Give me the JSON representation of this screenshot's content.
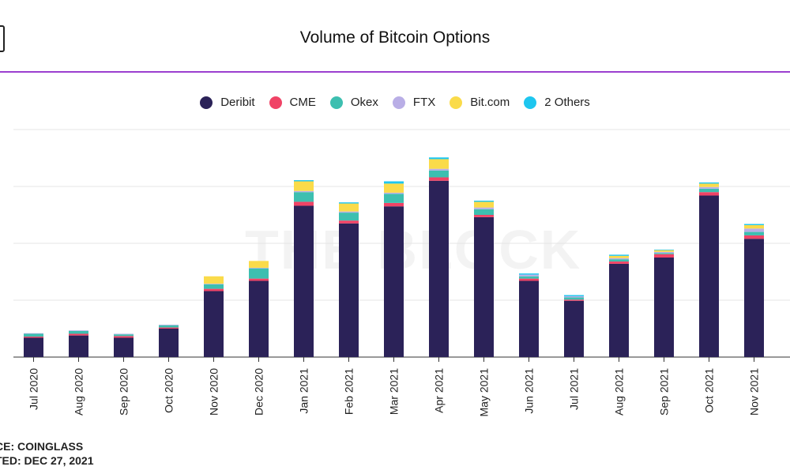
{
  "title": "Volume of Bitcoin Options",
  "watermark": "THE BLOCK",
  "footer": {
    "source": "CE: COINGLASS",
    "updated": "TED: DEC 27, 2021"
  },
  "chart_data": {
    "type": "bar",
    "stacked": true,
    "title": "Volume of Bitcoin Options",
    "xlabel": "",
    "ylabel": "",
    "ylim": [
      0,
      4
    ],
    "grid": true,
    "legend_position": "top-center",
    "categories": [
      "Jul 2020",
      "Aug 2020",
      "Sep 2020",
      "Oct 2020",
      "Nov 2020",
      "Dec 2020",
      "Jan 2021",
      "Feb 2021",
      "Mar 2021",
      "Apr 2021",
      "May 2021",
      "Jun 2021",
      "Jul 2021",
      "Aug 2021",
      "Sep 2021",
      "Oct 2021",
      "Nov 2021"
    ],
    "series": [
      {
        "name": "Deribit",
        "color": "#2b2258",
        "values": [
          0.34,
          0.38,
          0.34,
          0.5,
          1.16,
          1.34,
          2.66,
          2.35,
          2.65,
          3.1,
          2.46,
          1.34,
          0.99,
          1.64,
          1.75,
          2.84,
          2.08
        ]
      },
      {
        "name": "CME",
        "color": "#f04366",
        "values": [
          0.02,
          0.03,
          0.03,
          0.02,
          0.04,
          0.04,
          0.07,
          0.05,
          0.06,
          0.06,
          0.04,
          0.04,
          0.02,
          0.04,
          0.06,
          0.06,
          0.06
        ]
      },
      {
        "name": "Okex",
        "color": "#3dbfb0",
        "values": [
          0.05,
          0.05,
          0.03,
          0.04,
          0.08,
          0.18,
          0.17,
          0.14,
          0.16,
          0.12,
          0.1,
          0.04,
          0.04,
          0.04,
          0.02,
          0.06,
          0.06
        ]
      },
      {
        "name": "FTX",
        "color": "#b9aee6",
        "values": [
          0.01,
          0.01,
          0.01,
          0.01,
          0.01,
          0.01,
          0.02,
          0.02,
          0.02,
          0.03,
          0.03,
          0.03,
          0.02,
          0.02,
          0.02,
          0.03,
          0.06
        ]
      },
      {
        "name": "Bit.com",
        "color": "#fadb4a",
        "values": [
          0.0,
          0.0,
          0.0,
          0.0,
          0.13,
          0.12,
          0.17,
          0.14,
          0.16,
          0.17,
          0.1,
          0.0,
          0.0,
          0.04,
          0.03,
          0.06,
          0.06
        ]
      },
      {
        "name": "2 Others",
        "color": "#1ec6ef",
        "values": [
          0.0,
          0.0,
          0.0,
          0.0,
          0.0,
          0.0,
          0.02,
          0.02,
          0.04,
          0.03,
          0.02,
          0.02,
          0.02,
          0.02,
          0.01,
          0.02,
          0.02
        ]
      }
    ]
  }
}
